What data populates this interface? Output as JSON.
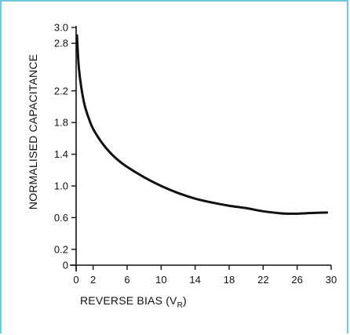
{
  "chart_data": {
    "type": "line",
    "title": "",
    "xlabel": "REVERSE BIAS (V",
    "xlabel_subscript": "R",
    "xlabel_suffix": ")",
    "ylabel": "NORMALISED CAPACITANCE",
    "xlim": [
      0,
      30
    ],
    "ylim": [
      0,
      3.0
    ],
    "x_ticks": [
      0,
      2,
      6,
      10,
      14,
      18,
      22,
      26,
      30
    ],
    "x_tick_labels": [
      "0",
      "2",
      "6",
      "10",
      "14",
      "18",
      "22",
      "26",
      "30"
    ],
    "y_ticks": [
      0,
      0.2,
      0.6,
      1.0,
      1.4,
      1.8,
      2.2,
      2.8,
      3.0
    ],
    "y_tick_labels": [
      "0",
      "0.2",
      "0.6",
      "1.0",
      "1.4",
      "1.8",
      "2.2",
      "2.8",
      "3.0"
    ],
    "grid": false,
    "legend": "none",
    "series": [
      {
        "color": "#111111",
        "x": [
          0.1,
          0.3,
          0.6,
          1,
          1.5,
          2,
          3,
          4,
          5,
          6,
          8,
          10,
          12,
          14,
          16,
          18,
          20,
          22,
          24,
          25,
          26,
          27,
          28,
          29.5
        ],
        "y": [
          2.9,
          2.52,
          2.25,
          2.02,
          1.85,
          1.72,
          1.55,
          1.42,
          1.32,
          1.24,
          1.11,
          1.0,
          0.91,
          0.84,
          0.79,
          0.75,
          0.72,
          0.68,
          0.655,
          0.65,
          0.65,
          0.655,
          0.66,
          0.665
        ]
      }
    ]
  }
}
